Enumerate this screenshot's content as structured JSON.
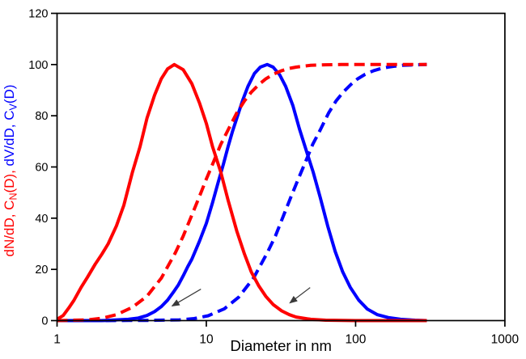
{
  "colors": {
    "red": "#ff0000",
    "blue": "#0000ff",
    "axis": "#000000",
    "tick_label": "#000000",
    "arrow": "#3a3a3a",
    "background": "#ffffff"
  },
  "chart_data": {
    "type": "line",
    "title": "",
    "xlabel": "Diameter in nm",
    "x_axis": {
      "scale": "log",
      "min": 1,
      "max": 1000,
      "ticks": [
        1,
        10,
        100,
        1000
      ],
      "tick_labels": [
        "1",
        "10",
        "100",
        "1000"
      ]
    },
    "y_axis": {
      "min": 0,
      "max": 120,
      "ticks": [
        0,
        20,
        40,
        60,
        80,
        100,
        120
      ],
      "tick_labels": [
        "0",
        "20",
        "40",
        "60",
        "80",
        "100",
        "120"
      ]
    },
    "ylabel_segments": [
      {
        "text": "dN/dD, C",
        "color": "red",
        "sub": false
      },
      {
        "text": "N",
        "color": "red",
        "sub": true
      },
      {
        "text": "(D), ",
        "color": "red",
        "sub": false
      },
      {
        "text": "dV/dD, C",
        "color": "blue",
        "sub": false
      },
      {
        "text": "V",
        "color": "blue",
        "sub": true
      },
      {
        "text": "(D)",
        "color": "blue",
        "sub": false
      }
    ],
    "grid": false,
    "legend": "none",
    "series": [
      {
        "name": "C_V(D) cumulative volume distribution",
        "short_name": "CV(D)",
        "color": "blue",
        "style": "dashed",
        "points": [
          [
            1,
            0
          ],
          [
            2,
            0
          ],
          [
            3,
            0.05
          ],
          [
            4.1,
            0.1
          ],
          [
            6.6,
            0.3
          ],
          [
            8.3,
            0.8
          ],
          [
            10.3,
            1.9
          ],
          [
            13.2,
            4.6
          ],
          [
            16.5,
            9.2
          ],
          [
            20.7,
            16.6
          ],
          [
            25.6,
            26.5
          ],
          [
            29,
            33
          ],
          [
            33,
            41.2
          ],
          [
            37,
            48.5
          ],
          [
            41.3,
            55.3
          ],
          [
            45.4,
            61
          ],
          [
            51.6,
            68.8
          ],
          [
            58,
            74.5
          ],
          [
            66,
            81.1
          ],
          [
            74,
            85.8
          ],
          [
            82.6,
            89.2
          ],
          [
            93,
            92.2
          ],
          [
            103,
            94.4
          ],
          [
            116,
            96.2
          ],
          [
            132,
            97.6
          ],
          [
            149,
            98.5
          ],
          [
            165,
            99
          ],
          [
            186,
            99.4
          ],
          [
            207,
            99.7
          ],
          [
            240,
            99.85
          ],
          [
            270,
            99.95
          ],
          [
            300,
            100
          ]
        ]
      },
      {
        "name": "dV/dD volume distribution",
        "short_name": "dV/dD",
        "color": "blue",
        "style": "solid",
        "points": [
          [
            1,
            0
          ],
          [
            2,
            0
          ],
          [
            3,
            0.5
          ],
          [
            3.5,
            1
          ],
          [
            4,
            2
          ],
          [
            4.5,
            3.5
          ],
          [
            5,
            5.5
          ],
          [
            5.5,
            8
          ],
          [
            6,
            11
          ],
          [
            6.5,
            14
          ],
          [
            7,
            17.5
          ],
          [
            7.5,
            21
          ],
          [
            8,
            24
          ],
          [
            9,
            31
          ],
          [
            10,
            38
          ],
          [
            11,
            46
          ],
          [
            12,
            54
          ],
          [
            13,
            61
          ],
          [
            14,
            68
          ],
          [
            15,
            74
          ],
          [
            16,
            79
          ],
          [
            17.5,
            86
          ],
          [
            19,
            91.5
          ],
          [
            21,
            96.5
          ],
          [
            23,
            99
          ],
          [
            25.6,
            100
          ],
          [
            28,
            99
          ],
          [
            31,
            96
          ],
          [
            34,
            91.5
          ],
          [
            38,
            84
          ],
          [
            42,
            75
          ],
          [
            47,
            66
          ],
          [
            52,
            58
          ],
          [
            58,
            48
          ],
          [
            65,
            37
          ],
          [
            73,
            27
          ],
          [
            82,
            19
          ],
          [
            92,
            13
          ],
          [
            105,
            8
          ],
          [
            120,
            4.5
          ],
          [
            140,
            2.3
          ],
          [
            165,
            1.2
          ],
          [
            200,
            0.5
          ],
          [
            250,
            0.15
          ],
          [
            300,
            0
          ]
        ]
      },
      {
        "name": "C_N(D) cumulative number distribution",
        "short_name": "CN(D)",
        "color": "red",
        "style": "dashed",
        "points": [
          [
            1,
            0
          ],
          [
            1.6,
            0.3
          ],
          [
            2,
            0.9
          ],
          [
            2.5,
            2.3
          ],
          [
            3.2,
            5.2
          ],
          [
            4,
            9.5
          ],
          [
            5,
            16.6
          ],
          [
            6.2,
            26.5
          ],
          [
            7,
            33
          ],
          [
            8,
            41.2
          ],
          [
            9,
            48.5
          ],
          [
            10,
            55.3
          ],
          [
            11,
            61
          ],
          [
            12.5,
            68.8
          ],
          [
            14,
            74.5
          ],
          [
            16,
            81.1
          ],
          [
            18,
            85.8
          ],
          [
            20,
            89.2
          ],
          [
            22.5,
            92.2
          ],
          [
            25,
            94.4
          ],
          [
            28,
            96.2
          ],
          [
            32,
            97.6
          ],
          [
            36,
            98.5
          ],
          [
            40,
            99
          ],
          [
            45,
            99.4
          ],
          [
            50,
            99.7
          ],
          [
            63,
            99.9
          ],
          [
            80,
            100
          ],
          [
            100,
            100
          ],
          [
            150,
            100
          ],
          [
            200,
            100
          ],
          [
            250,
            100
          ],
          [
            300,
            100
          ]
        ]
      },
      {
        "name": "dN/dD number distribution",
        "short_name": "dN/dD",
        "color": "red",
        "style": "solid",
        "points": [
          [
            1,
            0.5
          ],
          [
            1.1,
            2
          ],
          [
            1.2,
            5
          ],
          [
            1.3,
            8
          ],
          [
            1.45,
            13
          ],
          [
            1.6,
            17
          ],
          [
            1.8,
            22
          ],
          [
            2,
            26
          ],
          [
            2.2,
            30
          ],
          [
            2.5,
            37
          ],
          [
            2.8,
            45
          ],
          [
            3.2,
            58
          ],
          [
            3.6,
            68
          ],
          [
            4,
            79
          ],
          [
            4.5,
            88
          ],
          [
            5,
            94.5
          ],
          [
            5.5,
            98.3
          ],
          [
            6.1,
            100
          ],
          [
            7,
            98
          ],
          [
            8,
            92.5
          ],
          [
            9,
            85
          ],
          [
            10,
            77
          ],
          [
            11,
            68
          ],
          [
            12.5,
            58
          ],
          [
            14,
            47
          ],
          [
            16,
            35
          ],
          [
            18,
            26
          ],
          [
            20,
            19
          ],
          [
            22.5,
            13.5
          ],
          [
            25,
            9.5
          ],
          [
            28,
            6.3
          ],
          [
            32,
            3.8
          ],
          [
            36,
            2.3
          ],
          [
            40,
            1.4
          ],
          [
            50,
            0.5
          ],
          [
            63,
            0.15
          ],
          [
            80,
            0.05
          ],
          [
            100,
            0
          ],
          [
            200,
            0
          ],
          [
            300,
            0
          ]
        ]
      }
    ],
    "annotations": {
      "arrows": [
        {
          "from_d": 9.2,
          "from_v": 12.3,
          "to_d": 5.9,
          "to_v": 5.7,
          "points_at": "dV/dD curve"
        },
        {
          "from_d": 49.6,
          "from_v": 12.9,
          "to_d": 36.3,
          "to_v": 6.9,
          "points_at": "dN/dD curve"
        }
      ]
    }
  }
}
